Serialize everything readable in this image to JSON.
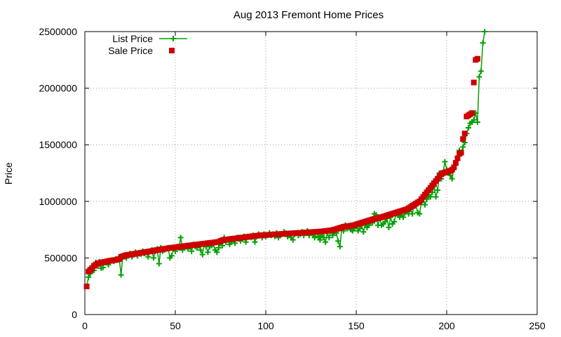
{
  "chart_data": {
    "type": "scatter",
    "title": "Aug 2013 Fremont Home Prices",
    "xlabel": "",
    "ylabel": "Price",
    "xlim": [
      0,
      250
    ],
    "ylim": [
      0,
      2500000
    ],
    "x_ticks": [
      0,
      50,
      100,
      150,
      200,
      250
    ],
    "y_ticks": [
      0,
      500000,
      1000000,
      1500000,
      2000000,
      2500000
    ],
    "x_tick_labels": [
      "0",
      "50",
      "100",
      "150",
      "200",
      "250"
    ],
    "y_tick_labels": [
      "0",
      "500000",
      "1000000",
      "1500000",
      "2000000",
      "2500000"
    ],
    "grid": true,
    "legend": "top-left",
    "series": [
      {
        "name": "List Price",
        "style": "linespoints",
        "marker": "plus",
        "color": "#00a000",
        "values": [
          248000,
          330000,
          365000,
          380000,
          390000,
          460000,
          430000,
          465000,
          410000,
          415000,
          460000,
          470000,
          440000,
          475000,
          480000,
          470000,
          490000,
          485000,
          500000,
          350000,
          520000,
          510000,
          500000,
          520000,
          540000,
          510000,
          530000,
          550000,
          520000,
          545000,
          535000,
          560000,
          540000,
          550000,
          510000,
          560000,
          570000,
          500000,
          560000,
          580000,
          450000,
          590000,
          560000,
          570000,
          580000,
          590000,
          500000,
          520000,
          580000,
          560000,
          600000,
          590000,
          680000,
          570000,
          600000,
          610000,
          580000,
          600000,
          560000,
          620000,
          600000,
          590000,
          610000,
          570000,
          530000,
          620000,
          600000,
          550000,
          600000,
          610000,
          620000,
          570000,
          550000,
          590000,
          650000,
          610000,
          680000,
          640000,
          660000,
          620000,
          650000,
          660000,
          630000,
          680000,
          680000,
          650000,
          670000,
          690000,
          640000,
          690000,
          690000,
          680000,
          700000,
          640000,
          690000,
          710000,
          700000,
          680000,
          710000,
          690000,
          700000,
          720000,
          700000,
          710000,
          690000,
          720000,
          680000,
          700000,
          710000,
          730000,
          720000,
          690000,
          710000,
          680000,
          660000,
          710000,
          720000,
          700000,
          710000,
          730000,
          700000,
          720000,
          740000,
          700000,
          720000,
          710000,
          680000,
          730000,
          690000,
          660000,
          700000,
          680000,
          640000,
          720000,
          680000,
          740000,
          700000,
          730000,
          720000,
          650000,
          600000,
          760000,
          740000,
          790000,
          760000,
          780000,
          750000,
          740000,
          760000,
          800000,
          740000,
          760000,
          790000,
          730000,
          800000,
          770000,
          790000,
          820000,
          810000,
          890000,
          880000,
          790000,
          850000,
          790000,
          800000,
          820000,
          850000,
          770000,
          860000,
          800000,
          820000,
          890000,
          880000,
          860000,
          880000,
          860000,
          900000,
          910000,
          890000,
          930000,
          890000,
          960000,
          960000,
          900000,
          890000,
          990000,
          1020000,
          970000,
          1020000,
          1050000,
          1040000,
          1080000,
          1130000,
          1040000,
          1100000,
          1250000,
          1200000,
          1250000,
          1350000,
          1280000,
          1260000,
          1230000,
          1200000,
          1300000,
          1320000,
          1380000,
          1450000,
          1430000,
          1480000,
          1520000,
          1600000,
          1650000,
          1690000,
          1700000,
          1720000,
          1780000,
          1700000,
          2100000,
          2150000,
          2400000,
          2500000
        ]
      },
      {
        "name": "Sale Price",
        "style": "points",
        "marker": "square",
        "color": "#cc0000",
        "values": [
          248000,
          380000,
          395000,
          410000,
          430000,
          440000,
          450000,
          455000,
          460000,
          462000,
          465000,
          468000,
          472000,
          475000,
          478000,
          480000,
          482000,
          485000,
          490000,
          510000,
          515000,
          520000,
          525000,
          528000,
          530000,
          532000,
          535000,
          538000,
          540000,
          542000,
          545000,
          548000,
          550000,
          553000,
          556000,
          558000,
          561000,
          564000,
          567000,
          570000,
          572000,
          575000,
          578000,
          580000,
          582000,
          585000,
          588000,
          590000,
          592000,
          594000,
          596000,
          598000,
          600000,
          602000,
          604000,
          606000,
          608000,
          610000,
          612000,
          614000,
          616000,
          618000,
          620000,
          622000,
          624000,
          626000,
          628000,
          630000,
          632000,
          634000,
          636000,
          638000,
          640000,
          642000,
          650000,
          655000,
          660000,
          662000,
          664000,
          666000,
          668000,
          670000,
          672000,
          674000,
          676000,
          678000,
          680000,
          682000,
          684000,
          686000,
          688000,
          690000,
          692000,
          694000,
          696000,
          698000,
          700000,
          701000,
          702000,
          703000,
          704000,
          705000,
          706000,
          707000,
          708000,
          709000,
          710000,
          711000,
          712000,
          713000,
          714000,
          715000,
          716000,
          717000,
          718000,
          719000,
          720000,
          721000,
          722000,
          723000,
          724000,
          725000,
          726000,
          727000,
          728000,
          729000,
          730000,
          731000,
          732000,
          733000,
          734000,
          736000,
          738000,
          740000,
          742000,
          744000,
          746000,
          750000,
          755000,
          760000,
          765000,
          770000,
          775000,
          778000,
          780000,
          782000,
          785000,
          788000,
          790000,
          795000,
          800000,
          805000,
          810000,
          815000,
          820000,
          825000,
          830000,
          835000,
          840000,
          845000,
          850000,
          852000,
          855000,
          860000,
          865000,
          870000,
          875000,
          880000,
          885000,
          890000,
          895000,
          900000,
          905000,
          910000,
          915000,
          920000,
          925000,
          930000,
          940000,
          950000,
          960000,
          970000,
          980000,
          990000,
          1000000,
          1020000,
          1040000,
          1060000,
          1080000,
          1100000,
          1120000,
          1140000,
          1160000,
          1180000,
          1200000,
          1220000,
          1240000,
          1250000,
          1255000,
          1260000,
          1265000,
          1270000,
          1280000,
          1300000,
          1340000,
          1380000,
          1420000,
          1430000,
          1550000,
          1600000,
          1750000,
          1760000,
          1770000,
          1780000,
          2050000,
          2250000,
          2260000
        ]
      }
    ]
  }
}
